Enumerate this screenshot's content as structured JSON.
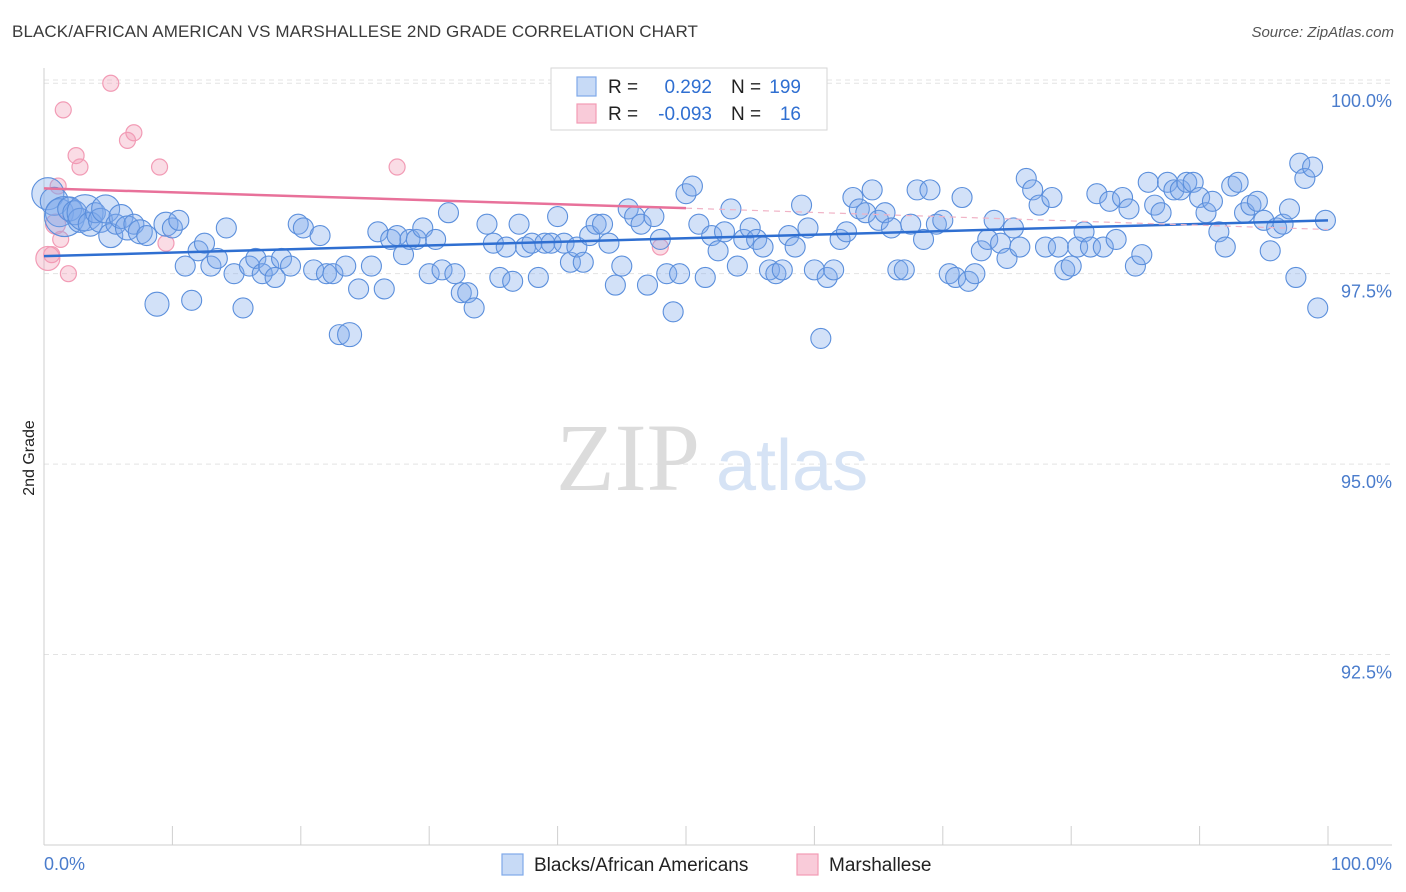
{
  "header": {
    "title": "BLACK/AFRICAN AMERICAN VS MARSHALLESE 2ND GRADE CORRELATION CHART",
    "source": "Source: ZipAtlas.com"
  },
  "watermark": {
    "zip": "ZIP",
    "atlas": "atlas"
  },
  "legend": {
    "rows": [
      {
        "r_label": "R =",
        "r_value": "0.292",
        "n_label": "N =",
        "n_value": "199",
        "color": "#7fa9ea"
      },
      {
        "r_label": "R =",
        "r_value": "-0.093",
        "n_label": "N =",
        "n_value": "16",
        "color": "#f29bb5"
      }
    ]
  },
  "bottom_legend": {
    "items": [
      {
        "label": "Blacks/African Americans",
        "color": "#7fa9ea"
      },
      {
        "label": "Marshallese",
        "color": "#f29bb5"
      }
    ]
  },
  "chart_data": {
    "type": "scatter",
    "ylabel": "2nd Grade",
    "xlim": [
      0,
      100
    ],
    "ylim": [
      90.0,
      100.2
    ],
    "y_ticks": [
      {
        "value": 100.0,
        "label": "100.0%"
      },
      {
        "value": 97.5,
        "label": "97.5%"
      },
      {
        "value": 95.0,
        "label": "95.0%"
      },
      {
        "value": 92.5,
        "label": "92.5%"
      }
    ],
    "x_tick_labels": [
      {
        "value": 0,
        "label": "0.0%"
      },
      {
        "value": 100,
        "label": "100.0%"
      }
    ],
    "x_minor_ticks": [
      0,
      10,
      20,
      30,
      40,
      50,
      60,
      70,
      80,
      90,
      100
    ],
    "grid": true,
    "colors": {
      "blue": "#7fa9ea",
      "blue_line": "#2f6fd1",
      "pink": "#f29bb5",
      "pink_line": "#e8719a"
    },
    "series": [
      {
        "name": "Blacks/African Americans",
        "trend": {
          "x": [
            0,
            100
          ],
          "y": [
            97.73,
            98.2
          ]
        },
        "points": [
          [
            0.3,
            98.55,
            16
          ],
          [
            0.8,
            98.45,
            14
          ],
          [
            1.2,
            98.3,
            14
          ],
          [
            1.6,
            98.25,
            20
          ],
          [
            2.0,
            98.35,
            12
          ],
          [
            2.4,
            98.3,
            12
          ],
          [
            2.8,
            98.2,
            12
          ],
          [
            3.2,
            98.3,
            18
          ],
          [
            3.6,
            98.15,
            12
          ],
          [
            4.0,
            98.3,
            10
          ],
          [
            4.4,
            98.2,
            12
          ],
          [
            4.8,
            98.35,
            14
          ],
          [
            5.2,
            98.0,
            12
          ],
          [
            5.6,
            98.15,
            10
          ],
          [
            6.0,
            98.25,
            12
          ],
          [
            6.5,
            98.1,
            12
          ],
          [
            7.0,
            98.15,
            10
          ],
          [
            7.5,
            98.05,
            12
          ],
          [
            8.0,
            98.0,
            10
          ],
          [
            8.8,
            97.1,
            12
          ],
          [
            9.5,
            98.15,
            12
          ],
          [
            10.0,
            98.1,
            10
          ],
          [
            10.5,
            98.2,
            10
          ],
          [
            11.0,
            97.6,
            10
          ],
          [
            11.5,
            97.15,
            10
          ],
          [
            12.0,
            97.8,
            10
          ],
          [
            12.5,
            97.9,
            10
          ],
          [
            13.0,
            97.6,
            10
          ],
          [
            13.5,
            97.7,
            10
          ],
          [
            14.2,
            98.1,
            10
          ],
          [
            14.8,
            97.5,
            10
          ],
          [
            15.5,
            97.05,
            10
          ],
          [
            16.0,
            97.6,
            10
          ],
          [
            16.5,
            97.7,
            10
          ],
          [
            17.0,
            97.5,
            10
          ],
          [
            17.5,
            97.6,
            10
          ],
          [
            18.0,
            97.45,
            10
          ],
          [
            18.5,
            97.7,
            10
          ],
          [
            19.2,
            97.6,
            10
          ],
          [
            19.8,
            98.15,
            10
          ],
          [
            20.2,
            98.1,
            10
          ],
          [
            21.0,
            97.55,
            10
          ],
          [
            21.5,
            98.0,
            10
          ],
          [
            22.0,
            97.5,
            10
          ],
          [
            22.5,
            97.5,
            10
          ],
          [
            23.0,
            96.7,
            10
          ],
          [
            23.5,
            97.6,
            10
          ],
          [
            23.8,
            96.7,
            12
          ],
          [
            24.5,
            97.3,
            10
          ],
          [
            25.5,
            97.6,
            10
          ],
          [
            26.0,
            98.05,
            10
          ],
          [
            26.5,
            97.3,
            10
          ],
          [
            27.0,
            97.95,
            10
          ],
          [
            27.5,
            98.0,
            10
          ],
          [
            28.0,
            97.75,
            10
          ],
          [
            28.5,
            97.95,
            10
          ],
          [
            29.0,
            97.95,
            10
          ],
          [
            29.5,
            98.1,
            10
          ],
          [
            30.0,
            97.5,
            10
          ],
          [
            30.5,
            97.95,
            10
          ],
          [
            31.0,
            97.55,
            10
          ],
          [
            31.5,
            98.3,
            10
          ],
          [
            32.0,
            97.5,
            10
          ],
          [
            32.5,
            97.25,
            10
          ],
          [
            33.0,
            97.25,
            10
          ],
          [
            33.5,
            97.05,
            10
          ],
          [
            34.5,
            98.15,
            10
          ],
          [
            35.0,
            97.9,
            10
          ],
          [
            35.5,
            97.45,
            10
          ],
          [
            36.0,
            97.85,
            10
          ],
          [
            36.5,
            97.4,
            10
          ],
          [
            37.0,
            98.15,
            10
          ],
          [
            37.5,
            97.85,
            10
          ],
          [
            38.0,
            97.9,
            10
          ],
          [
            38.5,
            97.45,
            10
          ],
          [
            39.0,
            97.9,
            10
          ],
          [
            39.5,
            97.9,
            10
          ],
          [
            40.0,
            98.25,
            10
          ],
          [
            40.5,
            97.9,
            10
          ],
          [
            41.0,
            97.65,
            10
          ],
          [
            41.5,
            97.85,
            10
          ],
          [
            42.0,
            97.65,
            10
          ],
          [
            42.5,
            98.0,
            10
          ],
          [
            43.0,
            98.15,
            10
          ],
          [
            43.5,
            98.15,
            10
          ],
          [
            44.0,
            97.9,
            10
          ],
          [
            44.5,
            97.35,
            10
          ],
          [
            45.0,
            97.6,
            10
          ],
          [
            45.5,
            98.35,
            10
          ],
          [
            46.0,
            98.25,
            10
          ],
          [
            46.5,
            98.15,
            10
          ],
          [
            47.0,
            97.35,
            10
          ],
          [
            47.5,
            98.25,
            10
          ],
          [
            48.0,
            97.95,
            10
          ],
          [
            48.5,
            97.5,
            10
          ],
          [
            49.0,
            97.0,
            10
          ],
          [
            49.5,
            97.5,
            10
          ],
          [
            50.0,
            98.55,
            10
          ],
          [
            50.5,
            98.65,
            10
          ],
          [
            51.0,
            98.15,
            10
          ],
          [
            51.5,
            97.45,
            10
          ],
          [
            52.0,
            98.0,
            10
          ],
          [
            52.5,
            97.8,
            10
          ],
          [
            53.0,
            98.05,
            10
          ],
          [
            53.5,
            98.35,
            10
          ],
          [
            54.0,
            97.6,
            10
          ],
          [
            54.5,
            97.95,
            10
          ],
          [
            55.0,
            98.1,
            10
          ],
          [
            55.5,
            97.95,
            10
          ],
          [
            56.0,
            97.85,
            10
          ],
          [
            56.5,
            97.55,
            10
          ],
          [
            57.0,
            97.5,
            10
          ],
          [
            57.5,
            97.55,
            10
          ],
          [
            58.0,
            98.0,
            10
          ],
          [
            58.5,
            97.85,
            10
          ],
          [
            59.0,
            98.4,
            10
          ],
          [
            59.5,
            98.1,
            10
          ],
          [
            60.0,
            97.55,
            10
          ],
          [
            60.5,
            96.65,
            10
          ],
          [
            61.0,
            97.45,
            10
          ],
          [
            61.5,
            97.55,
            10
          ],
          [
            62.0,
            97.95,
            10
          ],
          [
            62.5,
            98.05,
            10
          ],
          [
            63.0,
            98.5,
            10
          ],
          [
            63.5,
            98.35,
            10
          ],
          [
            64.0,
            98.3,
            10
          ],
          [
            64.5,
            98.6,
            10
          ],
          [
            65.0,
            98.2,
            10
          ],
          [
            65.5,
            98.3,
            10
          ],
          [
            66.0,
            98.1,
            10
          ],
          [
            66.5,
            97.55,
            10
          ],
          [
            67.0,
            97.55,
            10
          ],
          [
            67.5,
            98.15,
            10
          ],
          [
            68.0,
            98.6,
            10
          ],
          [
            68.5,
            97.95,
            10
          ],
          [
            69.0,
            98.6,
            10
          ],
          [
            69.5,
            98.15,
            10
          ],
          [
            70.0,
            98.2,
            10
          ],
          [
            70.5,
            97.5,
            10
          ],
          [
            71.0,
            97.45,
            10
          ],
          [
            71.5,
            98.5,
            10
          ],
          [
            72.0,
            97.4,
            10
          ],
          [
            72.5,
            97.5,
            10
          ],
          [
            73.0,
            97.8,
            10
          ],
          [
            73.5,
            97.95,
            10
          ],
          [
            74.0,
            98.2,
            10
          ],
          [
            74.5,
            97.9,
            10
          ],
          [
            75.0,
            97.7,
            10
          ],
          [
            75.5,
            98.1,
            10
          ],
          [
            76.0,
            97.85,
            10
          ],
          [
            76.5,
            98.75,
            10
          ],
          [
            77.0,
            98.6,
            10
          ],
          [
            77.5,
            98.4,
            10
          ],
          [
            78.0,
            97.85,
            10
          ],
          [
            78.5,
            98.5,
            10
          ],
          [
            79.0,
            97.85,
            10
          ],
          [
            79.5,
            97.55,
            10
          ],
          [
            80.0,
            97.6,
            10
          ],
          [
            80.5,
            97.85,
            10
          ],
          [
            81.0,
            98.05,
            10
          ],
          [
            81.5,
            97.85,
            10
          ],
          [
            82.0,
            98.55,
            10
          ],
          [
            82.5,
            97.85,
            10
          ],
          [
            83.0,
            98.45,
            10
          ],
          [
            83.5,
            97.95,
            10
          ],
          [
            84.0,
            98.5,
            10
          ],
          [
            84.5,
            98.35,
            10
          ],
          [
            85.0,
            97.6,
            10
          ],
          [
            85.5,
            97.75,
            10
          ],
          [
            86.0,
            98.7,
            10
          ],
          [
            86.5,
            98.4,
            10
          ],
          [
            87.0,
            98.3,
            10
          ],
          [
            87.5,
            98.7,
            10
          ],
          [
            88.0,
            98.6,
            10
          ],
          [
            88.5,
            98.6,
            10
          ],
          [
            89.0,
            98.7,
            10
          ],
          [
            89.5,
            98.7,
            10
          ],
          [
            90.0,
            98.5,
            10
          ],
          [
            90.5,
            98.3,
            10
          ],
          [
            91.0,
            98.45,
            10
          ],
          [
            91.5,
            98.05,
            10
          ],
          [
            92.0,
            97.85,
            10
          ],
          [
            92.5,
            98.65,
            10
          ],
          [
            93.0,
            98.7,
            10
          ],
          [
            93.5,
            98.3,
            10
          ],
          [
            94.0,
            98.4,
            10
          ],
          [
            94.5,
            98.45,
            10
          ],
          [
            95.0,
            98.2,
            10
          ],
          [
            95.5,
            97.8,
            10
          ],
          [
            96.0,
            98.1,
            10
          ],
          [
            96.5,
            98.15,
            10
          ],
          [
            97.0,
            98.35,
            10
          ],
          [
            97.5,
            97.45,
            10
          ],
          [
            97.8,
            98.95,
            10
          ],
          [
            98.2,
            98.75,
            10
          ],
          [
            98.8,
            98.9,
            10
          ],
          [
            99.2,
            97.05,
            10
          ],
          [
            99.8,
            98.2,
            10
          ]
        ]
      },
      {
        "name": "Marshallese",
        "trend": {
          "x": [
            0,
            50
          ],
          "y": [
            98.62,
            98.36
          ]
        },
        "trend_dashed": {
          "x": [
            50,
            100
          ],
          "y": [
            98.36,
            98.08
          ]
        },
        "points": [
          [
            0.3,
            97.7,
            12
          ],
          [
            0.6,
            97.75,
            8
          ],
          [
            0.9,
            98.15,
            10
          ],
          [
            1.1,
            98.65,
            8
          ],
          [
            1.3,
            97.95,
            8
          ],
          [
            1.5,
            99.65,
            8
          ],
          [
            1.9,
            97.5,
            8
          ],
          [
            2.5,
            99.05,
            8
          ],
          [
            2.8,
            98.9,
            8
          ],
          [
            5.2,
            100.0,
            8
          ],
          [
            6.5,
            99.25,
            8
          ],
          [
            7.0,
            99.35,
            8
          ],
          [
            9.0,
            98.9,
            8
          ],
          [
            9.5,
            97.9,
            8
          ],
          [
            27.5,
            98.9,
            8
          ],
          [
            48.0,
            97.85,
            8
          ]
        ]
      }
    ]
  }
}
